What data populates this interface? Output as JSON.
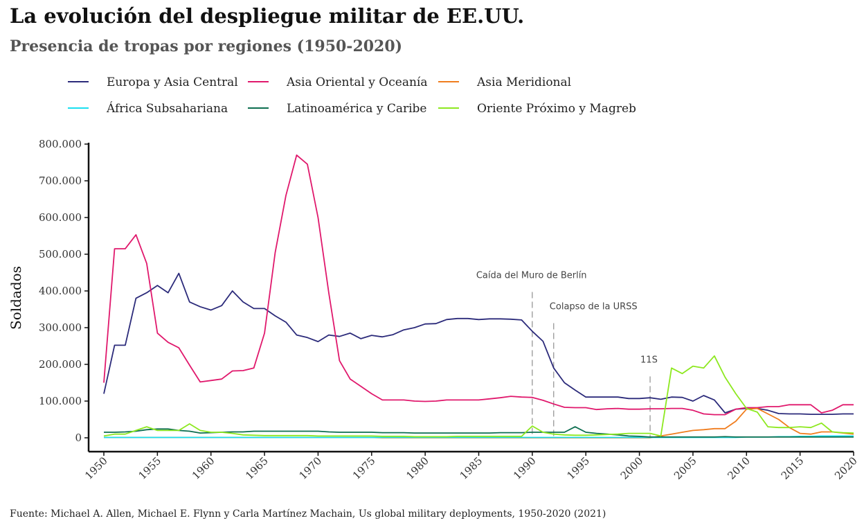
{
  "title": "La evolución del despliegue militar de EE.UU.",
  "subtitle": "Presencia de tropas por regiones (1950-2020)",
  "source": "Fuente: Michael A. Allen, Michael E. Flynn y Carla Martínez Machain, Us global military deployments, 1950-2020 (2021)",
  "chart_data": {
    "type": "line",
    "title": "La evolución del despliegue militar de EE.UU.",
    "subtitle": "Presencia de tropas por regiones (1950-2020)",
    "xlabel": "",
    "ylabel": "Soldados",
    "xlim": [
      1950,
      2020
    ],
    "ylim": [
      -30000,
      800000
    ],
    "x_ticks": [
      1950,
      1955,
      1960,
      1965,
      1970,
      1975,
      1980,
      1985,
      1990,
      1995,
      2000,
      2005,
      2010,
      2015,
      2020
    ],
    "y_ticks": [
      0,
      100000,
      200000,
      300000,
      400000,
      500000,
      600000,
      700000,
      800000
    ],
    "y_tick_labels": [
      "0",
      "100.000",
      "200.000",
      "300.000",
      "400.000",
      "500.000",
      "600.000",
      "700.000",
      "800.000"
    ],
    "grid": false,
    "legend_position": "top",
    "annotations": [
      {
        "x": 1990,
        "label": "Caída del Muro de Berlín",
        "y": 435000
      },
      {
        "x": 1992,
        "label": "Colapso de la URSS",
        "y": 350000
      },
      {
        "x": 2001,
        "label": "11S",
        "y": 205000
      }
    ],
    "x": [
      1950,
      1951,
      1952,
      1953,
      1954,
      1955,
      1956,
      1957,
      1958,
      1959,
      1960,
      1961,
      1962,
      1963,
      1964,
      1965,
      1966,
      1967,
      1968,
      1969,
      1970,
      1971,
      1972,
      1973,
      1974,
      1975,
      1976,
      1977,
      1978,
      1979,
      1980,
      1981,
      1982,
      1983,
      1984,
      1985,
      1986,
      1987,
      1988,
      1989,
      1990,
      1991,
      1992,
      1993,
      1994,
      1995,
      1996,
      1997,
      1998,
      1999,
      2000,
      2001,
      2002,
      2003,
      2004,
      2005,
      2006,
      2007,
      2008,
      2009,
      2010,
      2011,
      2012,
      2013,
      2014,
      2015,
      2016,
      2017,
      2018,
      2019,
      2020
    ],
    "series": [
      {
        "name": "Europa y Asia Central",
        "color": "#2b2a7a",
        "values": [
          120000,
          252000,
          252000,
          380000,
          395000,
          415000,
          395000,
          448000,
          370000,
          357000,
          348000,
          360000,
          400000,
          370000,
          352000,
          352000,
          332000,
          315000,
          280000,
          273000,
          262000,
          280000,
          276000,
          285000,
          270000,
          279000,
          275000,
          281000,
          294000,
          300000,
          310000,
          311000,
          322000,
          325000,
          325000,
          322000,
          324000,
          324000,
          323000,
          321000,
          290000,
          263000,
          190000,
          150000,
          130000,
          111000,
          111000,
          111000,
          111000,
          107000,
          107000,
          109000,
          105000,
          111000,
          110000,
          100000,
          115000,
          103000,
          68000,
          78000,
          80000,
          80000,
          75000,
          66000,
          65000,
          65000,
          64000,
          64000,
          64000,
          65000,
          65000
        ]
      },
      {
        "name": "Asia Oriental y Oceanía",
        "color": "#e0186c",
        "values": [
          150000,
          515000,
          515000,
          553000,
          475000,
          285000,
          260000,
          245000,
          198000,
          152000,
          156000,
          160000,
          182000,
          183000,
          190000,
          285000,
          505000,
          660000,
          770000,
          745000,
          600000,
          395000,
          210000,
          160000,
          140000,
          120000,
          103000,
          103000,
          103000,
          100000,
          99000,
          100000,
          103000,
          103000,
          103000,
          103000,
          106000,
          109000,
          113000,
          111000,
          110000,
          102000,
          92000,
          83000,
          82000,
          82000,
          77000,
          79000,
          80000,
          78000,
          78000,
          79000,
          79000,
          80000,
          80000,
          75000,
          65000,
          63000,
          63000,
          78000,
          82000,
          82000,
          85000,
          85000,
          90000,
          90000,
          90000,
          68000,
          75000,
          90000,
          90000
        ]
      },
      {
        "name": "Asia Meridional",
        "color": "#f07d1e",
        "values": [
          1000,
          1000,
          1000,
          1000,
          1000,
          1000,
          1000,
          1000,
          1000,
          1000,
          1000,
          1000,
          1000,
          1000,
          1000,
          1000,
          1000,
          1000,
          1000,
          1000,
          1000,
          1000,
          1000,
          1000,
          1000,
          1000,
          0,
          0,
          0,
          0,
          0,
          0,
          0,
          0,
          0,
          0,
          0,
          0,
          0,
          0,
          0,
          0,
          0,
          0,
          0,
          0,
          0,
          0,
          0,
          0,
          0,
          0,
          5000,
          10000,
          15000,
          20000,
          22000,
          25000,
          25000,
          45000,
          78000,
          80000,
          65000,
          50000,
          28000,
          12000,
          10000,
          16000,
          16000,
          13000,
          10000
        ]
      },
      {
        "name": "África Subsahariana",
        "color": "#19dff0",
        "values": [
          1000,
          1000,
          1000,
          1000,
          1000,
          1000,
          1000,
          1000,
          1000,
          1000,
          1000,
          1000,
          1000,
          1000,
          1000,
          1000,
          1000,
          1000,
          1000,
          1000,
          1000,
          1000,
          1000,
          1000,
          1000,
          1000,
          1000,
          1000,
          1000,
          1000,
          1000,
          1000,
          1000,
          1000,
          1000,
          1000,
          1000,
          1000,
          1000,
          1000,
          1000,
          1000,
          1000,
          1000,
          1000,
          1000,
          1000,
          1000,
          1000,
          1000,
          1000,
          1000,
          1000,
          1000,
          1000,
          1000,
          1000,
          1000,
          1000,
          1000,
          2000,
          2000,
          2000,
          3000,
          3000,
          4000,
          4000,
          5000,
          5000,
          5000,
          5000
        ]
      },
      {
        "name": "Latinoamérica y Caribe",
        "color": "#0c6e4f",
        "values": [
          15000,
          15000,
          16000,
          18000,
          22000,
          24000,
          24000,
          20000,
          18000,
          13000,
          14000,
          15000,
          16000,
          16000,
          18000,
          18000,
          18000,
          18000,
          18000,
          18000,
          18000,
          16000,
          15000,
          15000,
          15000,
          15000,
          14000,
          14000,
          14000,
          13000,
          13000,
          13000,
          13000,
          13000,
          13000,
          13000,
          13000,
          14000,
          14000,
          14000,
          15000,
          15000,
          15000,
          15000,
          30000,
          15000,
          12000,
          10000,
          8000,
          5000,
          4000,
          2000,
          2000,
          2000,
          2000,
          2000,
          2000,
          2000,
          3000,
          2000,
          2000,
          2000,
          2000,
          2000,
          2000,
          2000,
          2000,
          2000,
          2000,
          2000,
          2000
        ]
      },
      {
        "name": "Oriente Próximo y Magreb",
        "color": "#8de81f",
        "values": [
          5000,
          10000,
          10000,
          20000,
          30000,
          20000,
          20000,
          20000,
          38000,
          20000,
          15000,
          15000,
          12000,
          8000,
          7000,
          6000,
          6000,
          6000,
          6000,
          6000,
          5000,
          5000,
          5000,
          5000,
          5000,
          5000,
          4000,
          4000,
          4000,
          3000,
          3000,
          3000,
          3000,
          4000,
          4000,
          4000,
          4000,
          4000,
          4000,
          4000,
          32000,
          15000,
          10000,
          8000,
          7000,
          7000,
          8000,
          9000,
          10000,
          12000,
          12000,
          12000,
          5000,
          190000,
          175000,
          195000,
          190000,
          223000,
          165000,
          120000,
          80000,
          70000,
          30000,
          28000,
          28000,
          30000,
          28000,
          40000,
          16000,
          14000,
          13000
        ]
      }
    ]
  }
}
